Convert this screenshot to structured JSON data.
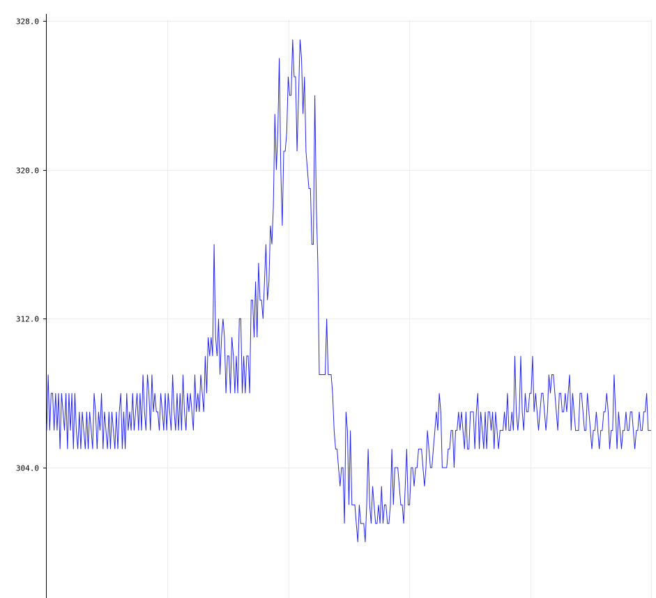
{
  "chart_data": {
    "type": "line",
    "title": "",
    "xlabel": "",
    "ylabel": "",
    "ylim": [
      296.8,
      329.0
    ],
    "xlim": [
      0,
      325
    ],
    "grid": true,
    "legend": "none",
    "y_ticks": [
      "328.0",
      "320.0",
      "312.0",
      "304.0"
    ],
    "y_tick_values": [
      328,
      320,
      312,
      304
    ],
    "x_grid_values": [
      65,
      130,
      195,
      260,
      325
    ],
    "colors": {
      "line": "#2424f0",
      "grid": "#ececec",
      "axis": "#000000"
    },
    "series": [
      {
        "values": [
          306,
          309,
          306,
          308,
          308,
          306,
          308,
          306,
          308,
          305,
          308,
          307,
          306,
          308,
          305,
          308,
          306,
          308,
          305,
          308,
          306,
          305,
          307,
          305,
          307,
          306,
          305,
          307,
          305,
          307,
          306,
          305,
          308,
          307,
          305,
          307,
          306,
          308,
          305,
          307,
          306,
          305,
          307,
          305,
          307,
          306,
          305,
          307,
          305,
          307,
          308,
          305,
          307,
          305,
          308,
          306,
          307,
          306,
          308,
          306,
          307,
          308,
          306,
          308,
          306,
          309,
          307,
          306,
          309,
          308,
          306,
          309,
          307,
          308,
          307,
          307,
          306,
          308,
          307,
          306,
          308,
          306,
          308,
          307,
          306,
          309,
          307,
          306,
          308,
          306,
          308,
          306,
          309,
          307,
          306,
          308,
          307,
          308,
          307,
          306,
          309,
          307,
          308,
          307,
          309,
          308,
          307,
          310,
          308,
          311,
          310,
          311,
          310,
          316,
          311,
          310,
          312,
          309,
          311,
          312,
          311,
          308,
          310,
          310,
          308,
          311,
          310,
          308,
          310,
          308,
          312,
          312,
          308,
          310,
          308,
          310,
          310,
          308,
          313,
          313,
          311,
          314,
          311,
          315,
          313,
          313,
          312,
          314,
          316,
          313,
          314,
          317,
          316,
          318,
          323,
          320,
          322,
          326,
          320,
          317,
          321,
          321,
          322,
          325,
          324,
          324,
          327,
          325,
          325,
          321,
          324,
          327,
          326,
          323,
          325,
          321,
          320,
          319,
          319,
          316,
          316,
          324,
          318,
          315,
          309,
          309,
          309,
          309,
          309,
          312,
          309,
          309,
          309,
          308,
          306,
          305,
          305,
          304,
          303,
          304,
          304,
          301,
          307,
          306,
          302,
          306,
          302,
          302,
          302,
          301,
          300,
          302,
          301,
          301,
          301,
          300,
          302,
          305,
          302,
          301,
          303,
          302,
          301,
          301,
          302,
          301,
          303,
          301,
          302,
          302,
          301,
          301,
          302,
          305,
          302,
          304,
          304,
          304,
          303,
          302,
          302,
          301,
          303,
          305,
          302,
          302,
          304,
          304,
          303,
          304,
          304,
          305,
          305,
          305,
          304,
          303,
          304,
          306,
          305,
          304,
          304,
          305,
          306,
          307,
          306,
          308,
          307,
          304,
          304,
          304,
          304,
          305,
          305,
          306,
          306,
          304,
          306,
          306,
          307,
          306,
          307,
          306,
          305,
          307,
          305,
          305,
          307,
          307,
          307,
          305,
          307,
          308,
          305,
          307,
          306,
          305,
          307,
          305,
          307,
          307,
          306,
          307,
          305,
          307,
          306,
          305,
          306,
          306,
          306,
          307,
          306,
          308,
          306,
          306,
          307,
          306,
          310,
          307,
          306,
          307,
          310,
          307,
          306,
          308,
          307,
          307,
          308,
          308,
          310,
          307,
          308,
          307,
          306,
          307,
          308,
          308,
          307,
          306,
          307,
          309,
          308,
          309,
          309,
          308,
          307,
          306,
          308,
          308,
          307,
          307,
          308,
          307,
          308,
          309,
          306,
          308,
          307,
          306,
          306,
          306,
          308,
          308,
          307,
          306,
          306,
          308,
          307,
          306,
          305,
          306,
          306,
          307,
          306,
          305,
          306,
          306,
          307,
          307,
          308,
          307,
          305,
          306,
          306,
          309,
          307,
          305,
          307,
          306,
          305,
          306,
          306,
          307,
          306,
          306,
          307,
          307,
          306,
          305,
          306,
          306,
          307,
          306,
          306,
          307,
          307,
          308,
          306,
          306,
          306
        ]
      }
    ]
  }
}
